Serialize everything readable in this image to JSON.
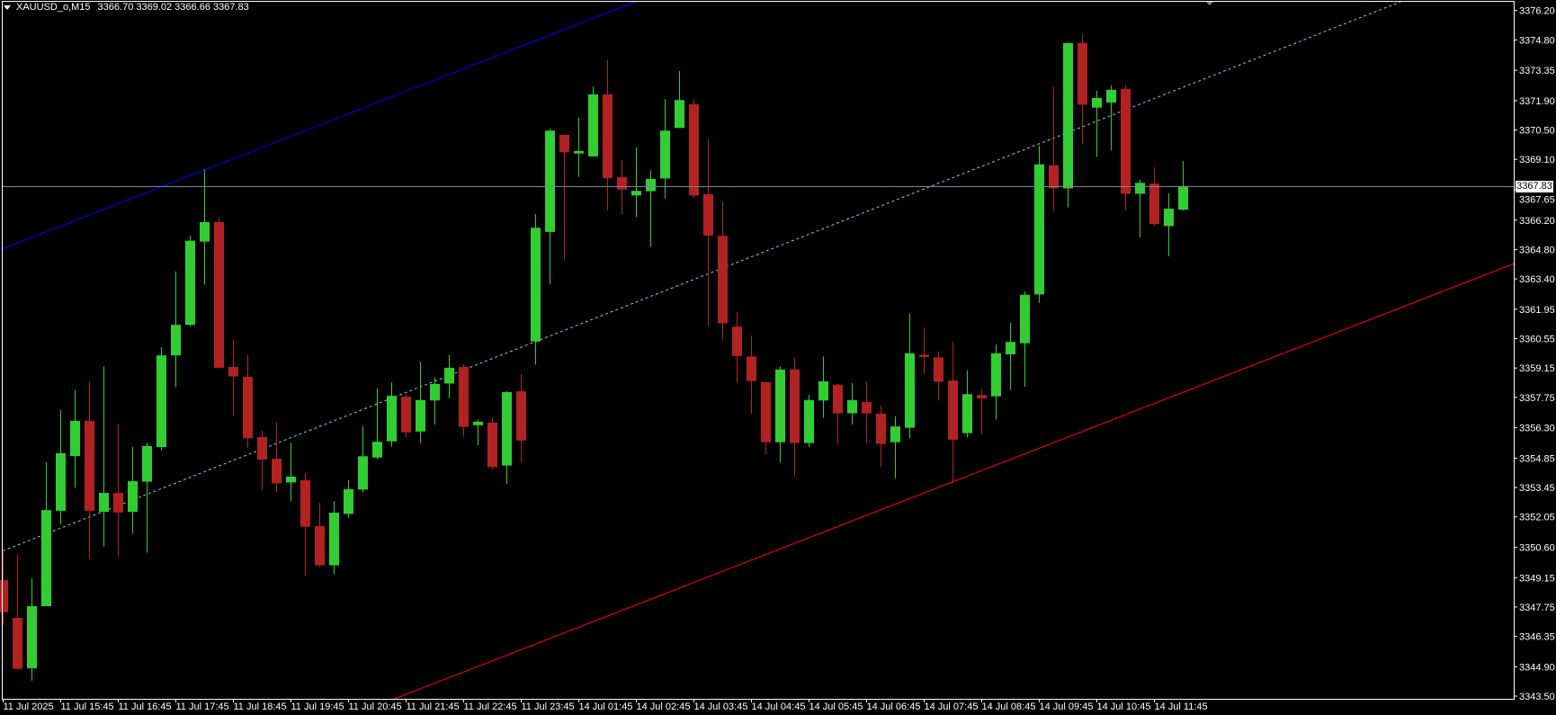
{
  "header": {
    "symbol": "XAUUSD_o,M15",
    "ohlc": "3366.70 3369.02 3366.66 3367.83"
  },
  "colors": {
    "background": "#000000",
    "bull": "#32CD32",
    "bear": "#B22222",
    "axis": "#FFFFFF",
    "price_line": "#778899",
    "upper_line": "#0000FF",
    "middle_line": "#87CEEB",
    "lower_line": "#FF0000"
  },
  "chart_data": {
    "type": "candlestick",
    "title": "",
    "ylim": [
      3343.5,
      3376.2
    ],
    "y_ticks": [
      "3376.20",
      "3374.80",
      "3373.35",
      "3371.90",
      "3370.50",
      "3369.10",
      "3367.65",
      "3366.20",
      "3364.80",
      "3363.40",
      "3361.95",
      "3360.55",
      "3359.15",
      "3357.75",
      "3356.30",
      "3354.85",
      "3353.45",
      "3352.05",
      "3350.60",
      "3349.15",
      "3347.75",
      "3346.35",
      "3344.90",
      "3343.50"
    ],
    "x_tick_labels": [
      "11 Jul 2025",
      "11 Jul 15:45",
      "11 Jul 16:45",
      "11 Jul 17:45",
      "11 Jul 18:45",
      "11 Jul 19:45",
      "11 Jul 20:45",
      "11 Jul 21:45",
      "11 Jul 22:45",
      "11 Jul 23:45",
      "14 Jul 01:45",
      "14 Jul 02:45",
      "14 Jul 03:45",
      "14 Jul 04:45",
      "14 Jul 05:45",
      "14 Jul 06:45",
      "14 Jul 07:45",
      "14 Jul 08:45",
      "14 Jul 09:45",
      "14 Jul 10:45",
      "14 Jul 11:45"
    ],
    "x_tick_every_bars": 4,
    "current_price": "3367.83",
    "times": [
      "2025.07.11 14:45",
      "2025.07.11 15:00",
      "2025.07.11 15:15",
      "2025.07.11 15:30",
      "2025.07.11 15:45",
      "2025.07.11 16:00",
      "2025.07.11 16:15",
      "2025.07.11 16:30",
      "2025.07.11 16:45",
      "2025.07.11 17:00",
      "2025.07.11 17:15",
      "2025.07.11 17:30",
      "2025.07.11 17:45",
      "2025.07.11 18:00",
      "2025.07.11 18:15",
      "2025.07.11 18:30",
      "2025.07.11 18:45",
      "2025.07.11 19:00",
      "2025.07.11 19:15",
      "2025.07.11 19:30",
      "2025.07.11 19:45",
      "2025.07.11 20:00",
      "2025.07.11 20:15",
      "2025.07.11 20:30",
      "2025.07.11 20:45",
      "2025.07.11 21:00",
      "2025.07.11 21:15",
      "2025.07.11 21:30",
      "2025.07.11 21:45",
      "2025.07.11 22:00",
      "2025.07.11 22:15",
      "2025.07.11 22:30",
      "2025.07.11 22:45",
      "2025.07.11 23:00",
      "2025.07.11 23:15",
      "2025.07.11 23:30",
      "2025.07.11 23:45",
      "2025.07.14 01:00",
      "2025.07.14 01:15",
      "2025.07.14 01:30",
      "2025.07.14 01:45",
      "2025.07.14 02:00",
      "2025.07.14 02:15",
      "2025.07.14 02:30",
      "2025.07.14 02:45",
      "2025.07.14 03:00",
      "2025.07.14 03:15",
      "2025.07.14 03:30",
      "2025.07.14 03:45",
      "2025.07.14 04:00",
      "2025.07.14 04:15",
      "2025.07.14 04:30",
      "2025.07.14 04:45",
      "2025.07.14 05:00",
      "2025.07.14 05:15",
      "2025.07.14 05:30",
      "2025.07.14 05:45",
      "2025.07.14 06:00",
      "2025.07.14 06:15",
      "2025.07.14 06:30",
      "2025.07.14 06:45",
      "2025.07.14 07:00",
      "2025.07.14 07:15",
      "2025.07.14 07:30",
      "2025.07.14 07:45",
      "2025.07.14 08:00",
      "2025.07.14 08:15",
      "2025.07.14 08:30",
      "2025.07.14 08:45",
      "2025.07.14 09:00",
      "2025.07.14 09:15",
      "2025.07.14 09:30",
      "2025.07.14 09:45",
      "2025.07.14 10:00",
      "2025.07.14 10:15",
      "2025.07.14 10:30",
      "2025.07.14 10:45",
      "2025.07.14 11:00",
      "2025.07.14 11:15",
      "2025.07.14 11:30",
      "2025.07.14 11:45",
      "2025.07.14 12:00",
      "2025.07.14 12:15"
    ],
    "ohlc_fields": [
      "open",
      "high",
      "low",
      "close"
    ],
    "ohlc": [
      [
        3349.03,
        3350.34,
        3346.89,
        3347.5
      ],
      [
        3347.23,
        3350.25,
        3344.75,
        3344.8
      ],
      [
        3344.83,
        3349.12,
        3344.24,
        3347.79
      ],
      [
        3347.79,
        3354.65,
        3347.79,
        3352.37
      ],
      [
        3352.34,
        3357.14,
        3351.7,
        3355.09
      ],
      [
        3354.95,
        3358.09,
        3353.43,
        3356.63
      ],
      [
        3356.63,
        3358.48,
        3350.03,
        3352.34
      ],
      [
        3352.29,
        3359.24,
        3350.63,
        3353.19
      ],
      [
        3353.19,
        3356.5,
        3350.12,
        3352.26
      ],
      [
        3352.29,
        3355.38,
        3351.24,
        3353.75
      ],
      [
        3353.73,
        3355.58,
        3350.34,
        3355.43
      ],
      [
        3355.38,
        3360.14,
        3355.22,
        3359.75
      ],
      [
        3359.75,
        3363.76,
        3358.23,
        3361.21
      ],
      [
        3361.21,
        3365.47,
        3361.14,
        3365.22
      ],
      [
        3365.18,
        3368.62,
        3363.13,
        3366.11
      ],
      [
        3366.11,
        3366.32,
        3359.16,
        3359.16
      ],
      [
        3359.2,
        3360.49,
        3356.87,
        3358.75
      ],
      [
        3358.73,
        3359.77,
        3355.35,
        3355.8
      ],
      [
        3355.86,
        3356.16,
        3353.3,
        3354.78
      ],
      [
        3354.82,
        3356.55,
        3353.2,
        3353.65
      ],
      [
        3353.69,
        3355.59,
        3352.78,
        3353.97
      ],
      [
        3353.79,
        3354.14,
        3349.26,
        3351.58
      ],
      [
        3351.61,
        3352.72,
        3349.66,
        3349.74
      ],
      [
        3349.74,
        3352.8,
        3349.32,
        3352.25
      ],
      [
        3352.19,
        3353.79,
        3352.01,
        3353.37
      ],
      [
        3353.35,
        3356.36,
        3353.2,
        3354.94
      ],
      [
        3354.88,
        3358.17,
        3354.8,
        3355.63
      ],
      [
        3355.65,
        3358.47,
        3355.39,
        3357.82
      ],
      [
        3357.78,
        3357.88,
        3355.84,
        3356.08
      ],
      [
        3356.12,
        3359.46,
        3355.57,
        3357.62
      ],
      [
        3357.6,
        3358.69,
        3356.46,
        3358.39
      ],
      [
        3358.41,
        3359.77,
        3357.72,
        3359.16
      ],
      [
        3359.2,
        3359.32,
        3355.88,
        3356.34
      ],
      [
        3356.42,
        3356.69,
        3355.47,
        3356.59
      ],
      [
        3356.54,
        3356.79,
        3354.3,
        3354.42
      ],
      [
        3354.5,
        3358.04,
        3353.63,
        3358.0
      ],
      [
        3358.04,
        3358.85,
        3354.66,
        3355.69
      ],
      [
        3360.41,
        3366.49,
        3359.32,
        3365.84
      ],
      [
        3365.64,
        3370.58,
        3363.15,
        3370.47
      ],
      [
        3370.27,
        3370.27,
        3364.32,
        3369.44
      ],
      [
        3369.38,
        3371.08,
        3368.27,
        3369.5
      ],
      [
        3369.24,
        3372.58,
        3369.24,
        3372.2
      ],
      [
        3372.2,
        3373.84,
        3366.67,
        3368.21
      ],
      [
        3368.25,
        3369.06,
        3366.47,
        3367.66
      ],
      [
        3367.38,
        3369.67,
        3366.35,
        3367.6
      ],
      [
        3367.58,
        3368.59,
        3364.93,
        3368.17
      ],
      [
        3368.19,
        3371.97,
        3367.24,
        3370.47
      ],
      [
        3370.6,
        3373.31,
        3370.6,
        3371.93
      ],
      [
        3371.73,
        3371.97,
        3367.24,
        3367.38
      ],
      [
        3367.44,
        3370.09,
        3361.14,
        3365.47
      ],
      [
        3365.45,
        3367.09,
        3360.51,
        3361.28
      ],
      [
        3361.12,
        3361.81,
        3358.41,
        3359.72
      ],
      [
        3359.7,
        3360.7,
        3356.95,
        3358.53
      ],
      [
        3358.47,
        3358.47,
        3355.01,
        3355.61
      ],
      [
        3355.61,
        3359.24,
        3354.66,
        3359.08
      ],
      [
        3359.08,
        3359.66,
        3353.99,
        3355.57
      ],
      [
        3355.57,
        3357.86,
        3355.39,
        3357.62
      ],
      [
        3357.6,
        3359.7,
        3356.77,
        3358.51
      ],
      [
        3358.35,
        3358.39,
        3355.49,
        3356.99
      ],
      [
        3356.99,
        3358.43,
        3356.46,
        3357.62
      ],
      [
        3357.52,
        3358.51,
        3355.57,
        3356.99
      ],
      [
        3356.97,
        3357.36,
        3354.42,
        3355.53
      ],
      [
        3355.61,
        3356.85,
        3353.89,
        3356.36
      ],
      [
        3356.3,
        3361.73,
        3355.8,
        3359.85
      ],
      [
        3359.78,
        3361.08,
        3358.87,
        3359.68
      ],
      [
        3359.66,
        3359.93,
        3357.6,
        3358.49
      ],
      [
        3358.55,
        3360.39,
        3353.65,
        3355.73
      ],
      [
        3356.04,
        3359.04,
        3355.84,
        3357.9
      ],
      [
        3357.86,
        3358.17,
        3356.0,
        3357.7
      ],
      [
        3357.8,
        3360.27,
        3356.69,
        3359.85
      ],
      [
        3359.8,
        3361.3,
        3358.1,
        3360.39
      ],
      [
        3360.33,
        3362.8,
        3358.25,
        3362.64
      ],
      [
        3362.66,
        3369.75,
        3362.25,
        3368.86
      ],
      [
        3368.82,
        3372.54,
        3366.61,
        3367.72
      ],
      [
        3367.72,
        3374.65,
        3366.81,
        3374.65
      ],
      [
        3374.65,
        3375.05,
        3369.81,
        3371.71
      ],
      [
        3371.57,
        3372.38,
        3369.22,
        3372.03
      ],
      [
        3371.81,
        3372.62,
        3369.52,
        3372.42
      ],
      [
        3372.46,
        3372.66,
        3366.65,
        3367.46
      ],
      [
        3367.46,
        3368.13,
        3365.39,
        3367.98
      ],
      [
        3367.94,
        3368.71,
        3365.94,
        3366.02
      ],
      [
        3365.92,
        3367.48,
        3364.48,
        3366.75
      ],
      [
        3366.7,
        3369.02,
        3366.66,
        3367.83
      ]
    ],
    "trendlines": [
      {
        "role": "upper",
        "style": "solid",
        "color": "#0000FF",
        "price_at_first_bar": 3364.84,
        "price_at_last_bar": 3386.82
      },
      {
        "role": "middle",
        "style": "dashed",
        "color": "#87CEEB",
        "price_at_first_bar": 3350.43,
        "price_at_last_bar": 3372.54
      },
      {
        "role": "lower",
        "style": "solid",
        "color": "#FF0000",
        "price_at_first_bar": 3336.11,
        "price_at_last_bar": 3357.99
      }
    ],
    "grid": false,
    "legend": "none"
  }
}
